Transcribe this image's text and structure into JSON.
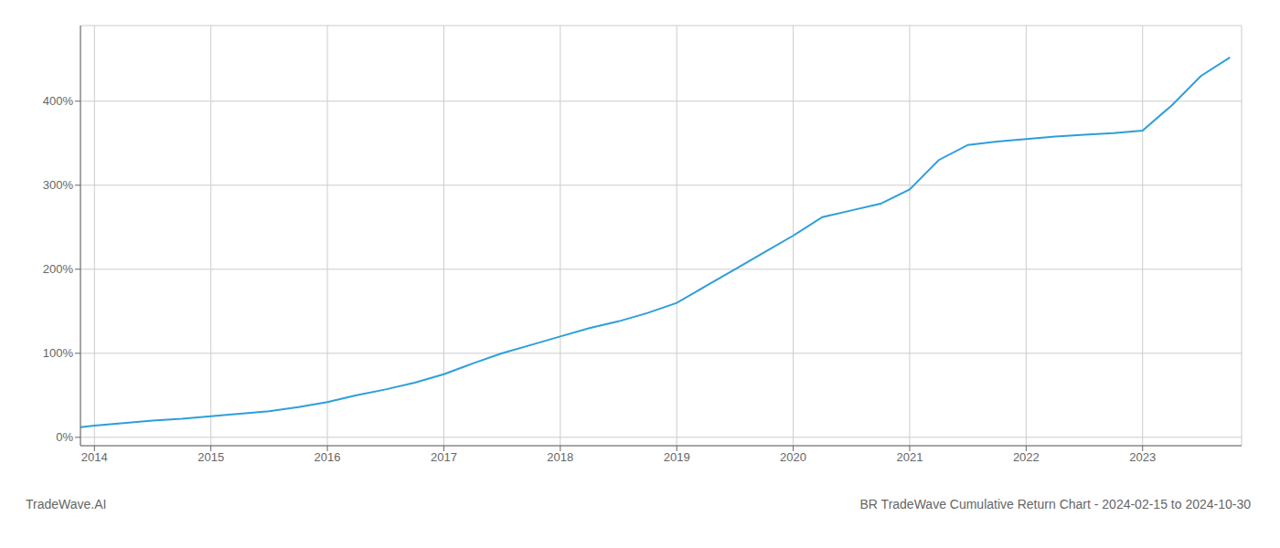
{
  "chart_data": {
    "type": "line",
    "title": "BR TradeWave Cumulative Return Chart - 2024-02-15 to 2024-10-30",
    "annotations": [
      "TradeWave.AI"
    ],
    "color": "#2d9fd9",
    "grid": true,
    "x": [
      2013.88,
      2014.0,
      2014.25,
      2014.5,
      2014.75,
      2015.0,
      2015.25,
      2015.5,
      2015.75,
      2016.0,
      2016.25,
      2016.5,
      2016.75,
      2017.0,
      2017.25,
      2017.5,
      2017.75,
      2018.0,
      2018.25,
      2018.5,
      2018.75,
      2019.0,
      2019.25,
      2019.5,
      2019.75,
      2020.0,
      2020.25,
      2020.5,
      2020.75,
      2021.0,
      2021.25,
      2021.5,
      2021.75,
      2022.0,
      2022.25,
      2022.5,
      2022.75,
      2023.0,
      2023.25,
      2023.5,
      2023.75
    ],
    "values": [
      12,
      14,
      17,
      20,
      22,
      25,
      28,
      31,
      36,
      42,
      50,
      57,
      65,
      75,
      88,
      100,
      110,
      120,
      130,
      138,
      148,
      160,
      180,
      200,
      220,
      240,
      262,
      270,
      278,
      295,
      330,
      348,
      352,
      355,
      358,
      360,
      362,
      365,
      395,
      430,
      452
    ],
    "xlim": [
      2013.88,
      2023.85
    ],
    "xticks": [
      2014,
      2015,
      2016,
      2017,
      2018,
      2019,
      2020,
      2021,
      2022,
      2023
    ],
    "ylim": [
      -10,
      490
    ],
    "yticks": [
      {
        "value": 0,
        "label": "0%"
      },
      {
        "value": 100,
        "label": "100%"
      },
      {
        "value": 200,
        "label": "200%"
      },
      {
        "value": 300,
        "label": "300%"
      },
      {
        "value": 400,
        "label": "400%"
      }
    ]
  }
}
